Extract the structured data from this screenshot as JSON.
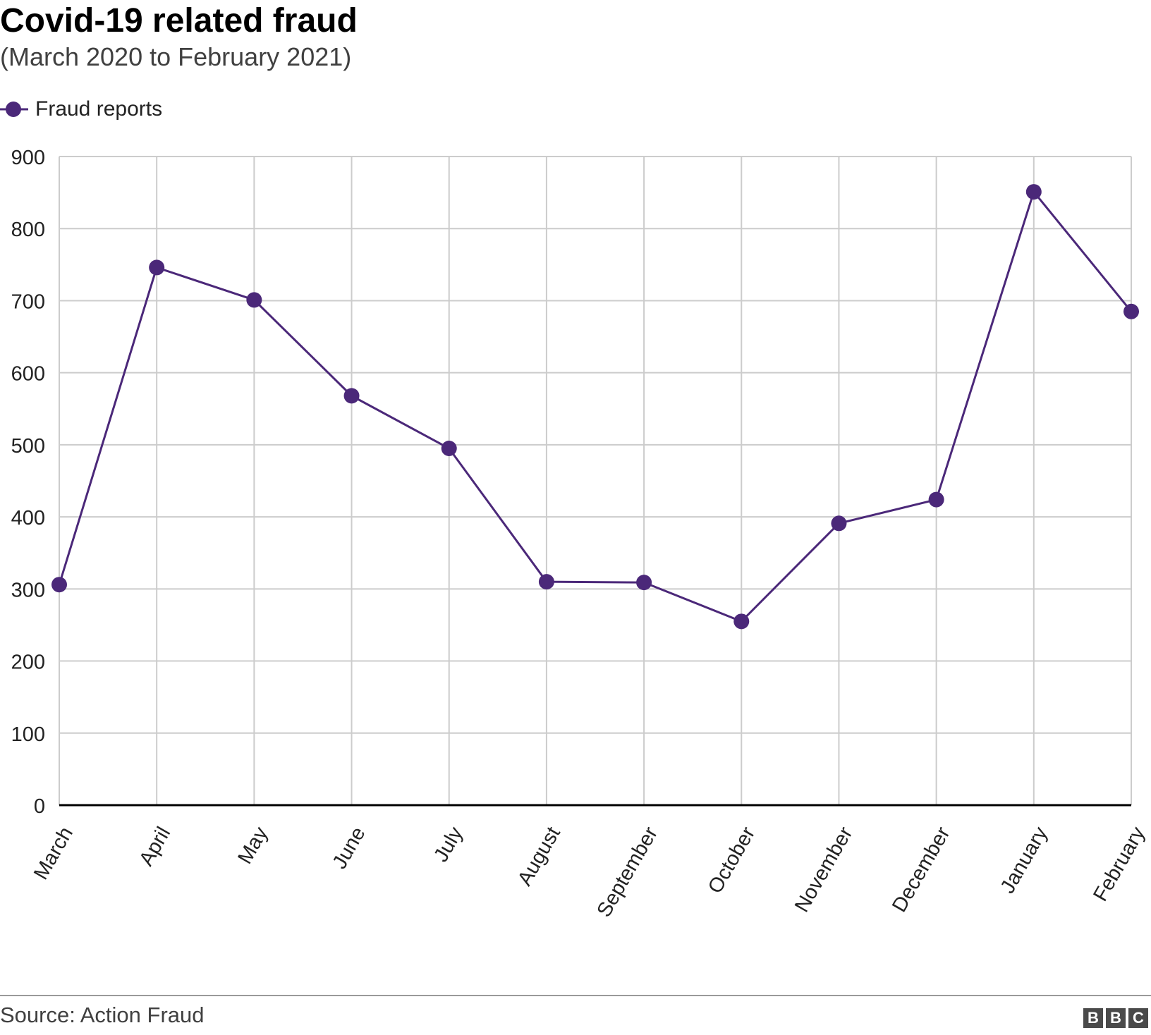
{
  "header": {
    "title": "Covid-19 related fraud",
    "subtitle": "(March 2020 to February 2021)"
  },
  "legend": {
    "label": "Fraud reports"
  },
  "footer": {
    "source": "Source: Action Fraud",
    "logo_letters": [
      "B",
      "B",
      "C"
    ]
  },
  "colors": {
    "series": "#4b2879",
    "grid": "#cccccc",
    "baseline": "#000000"
  },
  "chart_data": {
    "type": "line",
    "title": "Covid-19 related fraud",
    "subtitle": "(March 2020 to February 2021)",
    "xlabel": "",
    "ylabel": "",
    "categories": [
      "March",
      "April",
      "May",
      "June",
      "July",
      "August",
      "September",
      "October",
      "November",
      "December",
      "January",
      "February"
    ],
    "series": [
      {
        "name": "Fraud reports",
        "values": [
          306,
          746,
          701,
          568,
          495,
          310,
          309,
          255,
          391,
          424,
          851,
          685
        ]
      }
    ],
    "ylim": [
      0,
      900
    ],
    "yticks": [
      0,
      100,
      200,
      300,
      400,
      500,
      600,
      700,
      800,
      900
    ],
    "grid": true,
    "legend_position": "top-left"
  }
}
